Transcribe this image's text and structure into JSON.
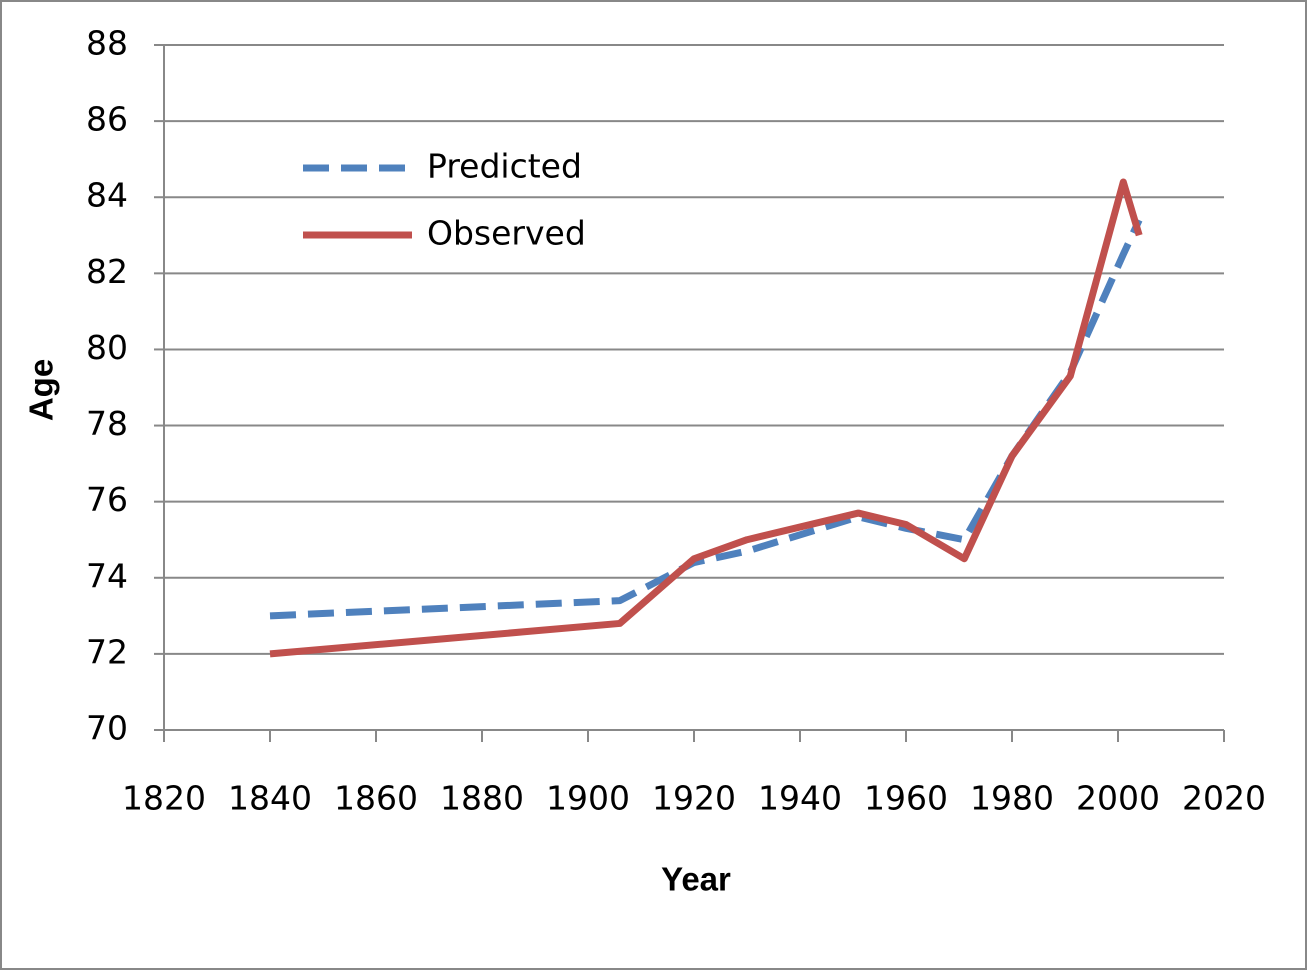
{
  "chart_data": {
    "type": "line",
    "x_label": "Year",
    "y_label": "Age",
    "x": [
      1840,
      1906,
      1920,
      1930,
      1951,
      1960,
      1971,
      1980,
      1991,
      2001,
      2004
    ],
    "series": [
      {
        "name": "Predicted",
        "color": "#4f81bd",
        "dash": true,
        "values": [
          73.0,
          73.4,
          74.4,
          74.7,
          75.6,
          75.3,
          75.0,
          77.2,
          79.4,
          82.5,
          83.4
        ]
      },
      {
        "name": "Observed",
        "color": "#c0504d",
        "dash": false,
        "values": [
          72.0,
          72.8,
          74.5,
          75.0,
          75.7,
          75.4,
          74.5,
          77.2,
          79.3,
          84.4,
          83.0
        ]
      }
    ],
    "xlim": [
      1820,
      2020
    ],
    "xticks": [
      1820,
      1840,
      1860,
      1880,
      1900,
      1920,
      1940,
      1960,
      1980,
      2000,
      2020
    ],
    "ylim": [
      70,
      88
    ],
    "yticks": [
      70,
      72,
      74,
      76,
      78,
      80,
      82,
      84,
      86,
      88
    ],
    "grid": true,
    "legend": "top-left"
  }
}
